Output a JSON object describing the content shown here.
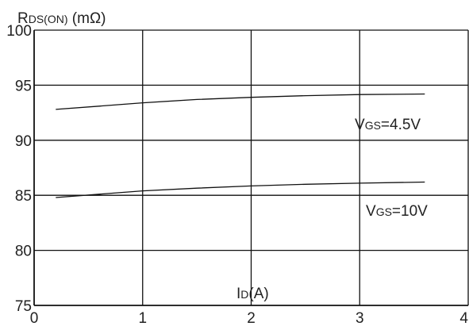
{
  "chart_data": {
    "type": "line",
    "ylabel": {
      "main": "R",
      "sub": "DS(ON)",
      "unit": " (mΩ)"
    },
    "xlabel": {
      "main": "I",
      "sub": "D",
      "unit": "(A)"
    },
    "xlim": [
      0,
      4
    ],
    "ylim": [
      75,
      100
    ],
    "x_ticks": [
      0,
      1,
      2,
      3,
      4
    ],
    "y_ticks": [
      75,
      80,
      85,
      90,
      95,
      100
    ],
    "x_tick_labels": [
      "0",
      "1",
      "2",
      "3",
      "4"
    ],
    "y_tick_labels": [
      "75",
      "80",
      "85",
      "90",
      "95",
      "100"
    ],
    "grid": true,
    "series": [
      {
        "label": {
          "main": "V",
          "sub": "GS",
          "value": "=4.5V"
        },
        "x": [
          0.2,
          0.6,
          1.0,
          1.5,
          2.0,
          2.5,
          3.0,
          3.6
        ],
        "y": [
          92.8,
          93.1,
          93.4,
          93.7,
          93.9,
          94.05,
          94.15,
          94.2
        ]
      },
      {
        "label": {
          "main": "V",
          "sub": "GS",
          "value": "=10V"
        },
        "x": [
          0.2,
          0.6,
          1.0,
          1.5,
          2.0,
          2.5,
          3.0,
          3.6
        ],
        "y": [
          84.8,
          85.1,
          85.4,
          85.65,
          85.85,
          86.0,
          86.1,
          86.2
        ]
      }
    ]
  }
}
